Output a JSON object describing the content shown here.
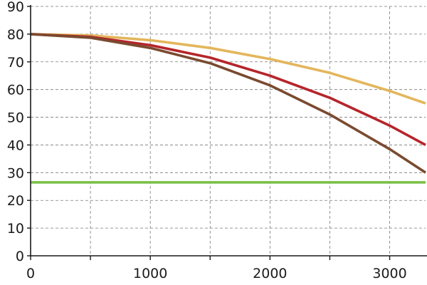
{
  "chart_data": {
    "type": "line",
    "title": "",
    "xlabel": "",
    "ylabel": "",
    "xlim": [
      0,
      3300
    ],
    "ylim": [
      0,
      90
    ],
    "x_ticks": [
      0,
      500,
      1000,
      1500,
      2000,
      2500,
      3000
    ],
    "x_tick_labels": [
      "0",
      "",
      "1000",
      "",
      "2000",
      "",
      "3000"
    ],
    "y_ticks": [
      0,
      10,
      20,
      30,
      40,
      50,
      60,
      70,
      80,
      90
    ],
    "y_tick_labels": [
      "0",
      "10",
      "20",
      "30",
      "40",
      "50",
      "60",
      "70",
      "80",
      "90"
    ],
    "grid": true,
    "series": [
      {
        "color": "#e3b65c",
        "points": [
          [
            0,
            80
          ],
          [
            500,
            79.5
          ],
          [
            1000,
            77.8
          ],
          [
            1500,
            75
          ],
          [
            2000,
            71
          ],
          [
            2500,
            66
          ],
          [
            3000,
            59.5
          ],
          [
            3300,
            55
          ]
        ]
      },
      {
        "color": "#b5252a",
        "points": [
          [
            0,
            80
          ],
          [
            500,
            79
          ],
          [
            1000,
            76
          ],
          [
            1500,
            71.5
          ],
          [
            2000,
            65
          ],
          [
            2500,
            57
          ],
          [
            3000,
            47
          ],
          [
            3300,
            40
          ]
        ]
      },
      {
        "color": "#7a4a30",
        "points": [
          [
            0,
            80
          ],
          [
            500,
            78.7
          ],
          [
            1000,
            75
          ],
          [
            1500,
            69.5
          ],
          [
            2000,
            61.5
          ],
          [
            2500,
            51
          ],
          [
            3000,
            38.5
          ],
          [
            3300,
            30
          ]
        ]
      },
      {
        "color": "#7cc04a",
        "points": [
          [
            0,
            26.5
          ],
          [
            3300,
            26.5
          ]
        ]
      }
    ]
  }
}
